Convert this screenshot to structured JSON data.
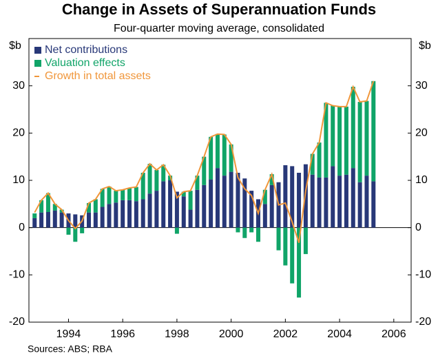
{
  "chart_data": {
    "type": "bar",
    "title": "Change in Assets of Superannuation Funds",
    "subtitle": "Four-quarter moving average, consolidated",
    "y_label": "$b",
    "sources": "Sources: ABS; RBA",
    "legend": "upper left",
    "stacked": true,
    "x": [
      1992.75,
      1993,
      1993.25,
      1993.5,
      1993.75,
      1994,
      1994.25,
      1994.5,
      1994.75,
      1995,
      1995.25,
      1995.5,
      1995.75,
      1996,
      1996.25,
      1996.5,
      1996.75,
      1997,
      1997.25,
      1997.5,
      1997.75,
      1998,
      1998.25,
      1998.5,
      1998.75,
      1999,
      1999.25,
      1999.5,
      1999.75,
      2000,
      2000.25,
      2000.5,
      2000.75,
      2001,
      2001.25,
      2001.5,
      2001.75,
      2002,
      2002.25,
      2002.5,
      2002.75,
      2003,
      2003.25,
      2003.5,
      2003.75,
      2004,
      2004.25,
      2004.5,
      2004.75,
      2005,
      2005.25
    ],
    "xlim": [
      1992.54,
      2006.64
    ],
    "xticks": [
      1994,
      1996,
      1998,
      2000,
      2002,
      2004,
      2006
    ],
    "ylim": [
      -20,
      40
    ],
    "yticks": [
      -20,
      -10,
      0,
      10,
      20,
      30
    ],
    "series": [
      {
        "name": "Net contributions",
        "type": "bar",
        "color": "#283878",
        "values": [
          2.0,
          3.2,
          3.3,
          3.6,
          3.2,
          3.0,
          2.8,
          2.6,
          3.2,
          3.2,
          4.4,
          5.0,
          5.3,
          5.8,
          5.8,
          5.6,
          6.0,
          7.2,
          7.8,
          9.8,
          10.0,
          7.6,
          6.6,
          3.8,
          8.0,
          9.0,
          10.2,
          12.6,
          11.0,
          11.8,
          11.6,
          10.4,
          7.8,
          6.0,
          5.0,
          9.0,
          9.6,
          13.2,
          13.0,
          11.6,
          13.4,
          11.2,
          10.6,
          10.6,
          13.0,
          11.0,
          11.2,
          12.6,
          9.6,
          11.0,
          9.8
        ]
      },
      {
        "name": "Valuation effects",
        "type": "bar",
        "color": "#10a468",
        "values": [
          1.0,
          2.6,
          4.0,
          1.4,
          0.6,
          -1.5,
          -3.0,
          -1.2,
          2.0,
          2.8,
          3.8,
          3.7,
          2.5,
          2.2,
          2.6,
          3.0,
          5.6,
          6.3,
          4.4,
          3.5,
          1.0,
          -1.3,
          1.0,
          4.0,
          3.0,
          6.0,
          9.0,
          7.2,
          8.7,
          5.8,
          -1.0,
          -2.2,
          -1.0,
          -3.0,
          3.0,
          2.3,
          -4.8,
          -8.0,
          -11.8,
          -14.8,
          -5.6,
          4.4,
          7.4,
          15.8,
          12.8,
          14.6,
          14.4,
          17.2,
          17.0,
          15.8,
          21.2
        ]
      },
      {
        "name": "Growth in total assets",
        "type": "line",
        "color": "#f0963a",
        "values": [
          3.2,
          5.8,
          7.3,
          5.0,
          3.8,
          1.5,
          -0.2,
          1.4,
          5.2,
          6.0,
          8.2,
          8.7,
          7.8,
          8.0,
          8.4,
          8.6,
          11.6,
          13.5,
          12.2,
          13.3,
          11.0,
          6.3,
          7.6,
          7.8,
          11.0,
          15.0,
          19.2,
          19.8,
          19.7,
          17.6,
          10.6,
          8.2,
          6.8,
          3.0,
          8.0,
          11.3,
          4.8,
          5.2,
          1.2,
          -3.2,
          7.8,
          15.6,
          18.0,
          26.4,
          25.8,
          25.6,
          25.6,
          29.8,
          26.6,
          26.8,
          31.0
        ]
      }
    ]
  }
}
